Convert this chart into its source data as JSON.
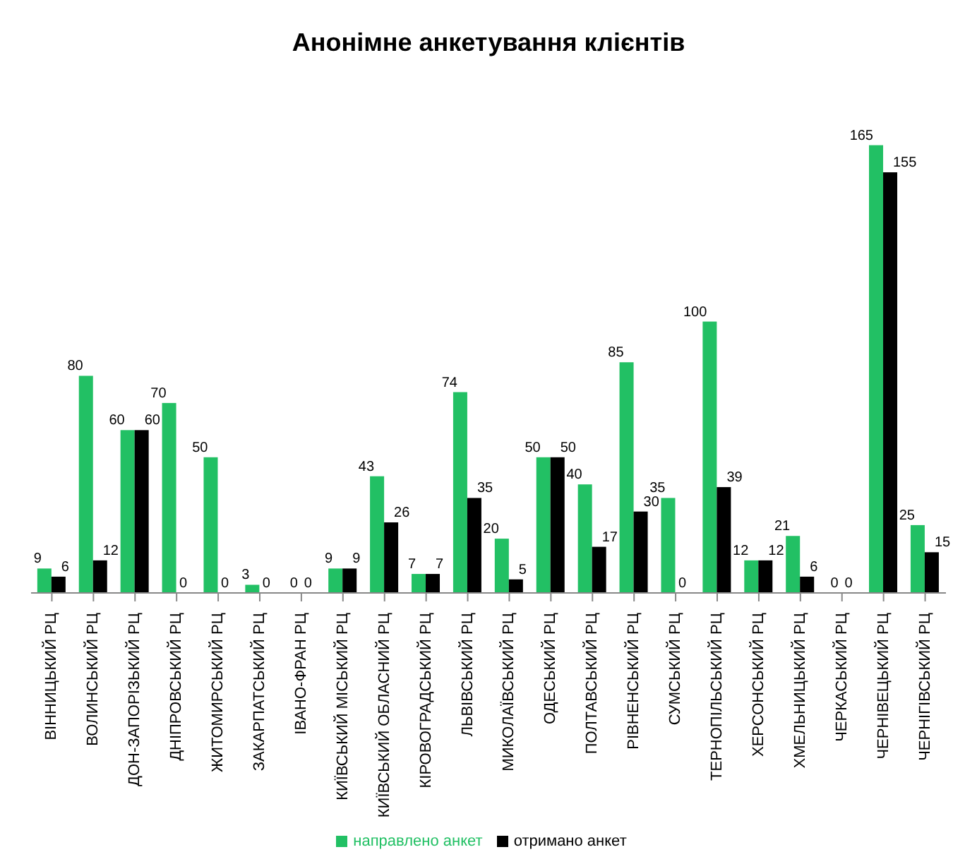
{
  "chart_data": {
    "type": "bar",
    "title": "Анонімне анкетування клієнтів",
    "categories": [
      "ВІННИЦЬКИЙ РЦ",
      "ВОЛИНСЬКИЙ РЦ",
      "ДОН-ЗАПОРІЗЬКИЙ РЦ",
      "ДНІПРОВСЬКИЙ РЦ",
      "ЖИТОМИРСЬКИЙ РЦ",
      "ЗАКАРПАТСЬКИЙ РЦ",
      "ІВАНО-ФРАН РЦ",
      "КИЇВСЬКИЙ МІСЬКИЙ РЦ",
      "КИЇВСЬКИЙ ОБЛАСНИЙ РЦ",
      "КІРОВОГРАДСЬКИЙ РЦ",
      "ЛЬВІВСЬКИЙ РЦ",
      "МИКОЛАЇВСЬКИЙ РЦ",
      "ОДЕСЬКИЙ РЦ",
      "ПОЛТАВСЬКИЙ РЦ",
      "РІВНЕНСЬКИЙ РЦ",
      "СУМСЬКИЙ РЦ",
      "ТЕРНОПІЛЬСЬКИЙ РЦ",
      "ХЕРСОНСЬКИЙ РЦ",
      "ХМЕЛЬНИЦЬКИЙ РЦ",
      "ЧЕРКАСЬКИЙ РЦ",
      "ЧЕРНІВЕЦЬКИЙ РЦ",
      "ЧЕРНІГІВСЬКИЙ РЦ"
    ],
    "series": [
      {
        "name": "направлено анкет",
        "color": "#22c064",
        "values": [
          9,
          80,
          60,
          70,
          50,
          3,
          0,
          9,
          43,
          7,
          74,
          20,
          50,
          40,
          85,
          35,
          100,
          12,
          21,
          0,
          165,
          25
        ]
      },
      {
        "name": "отримано анкет",
        "color": "#000000",
        "values": [
          6,
          12,
          60,
          0,
          0,
          0,
          0,
          9,
          26,
          7,
          35,
          5,
          50,
          17,
          30,
          0,
          39,
          12,
          6,
          0,
          155,
          15
        ]
      }
    ],
    "data_labels": true,
    "legend": "bottom",
    "grid": false,
    "tick_labels": "x"
  }
}
